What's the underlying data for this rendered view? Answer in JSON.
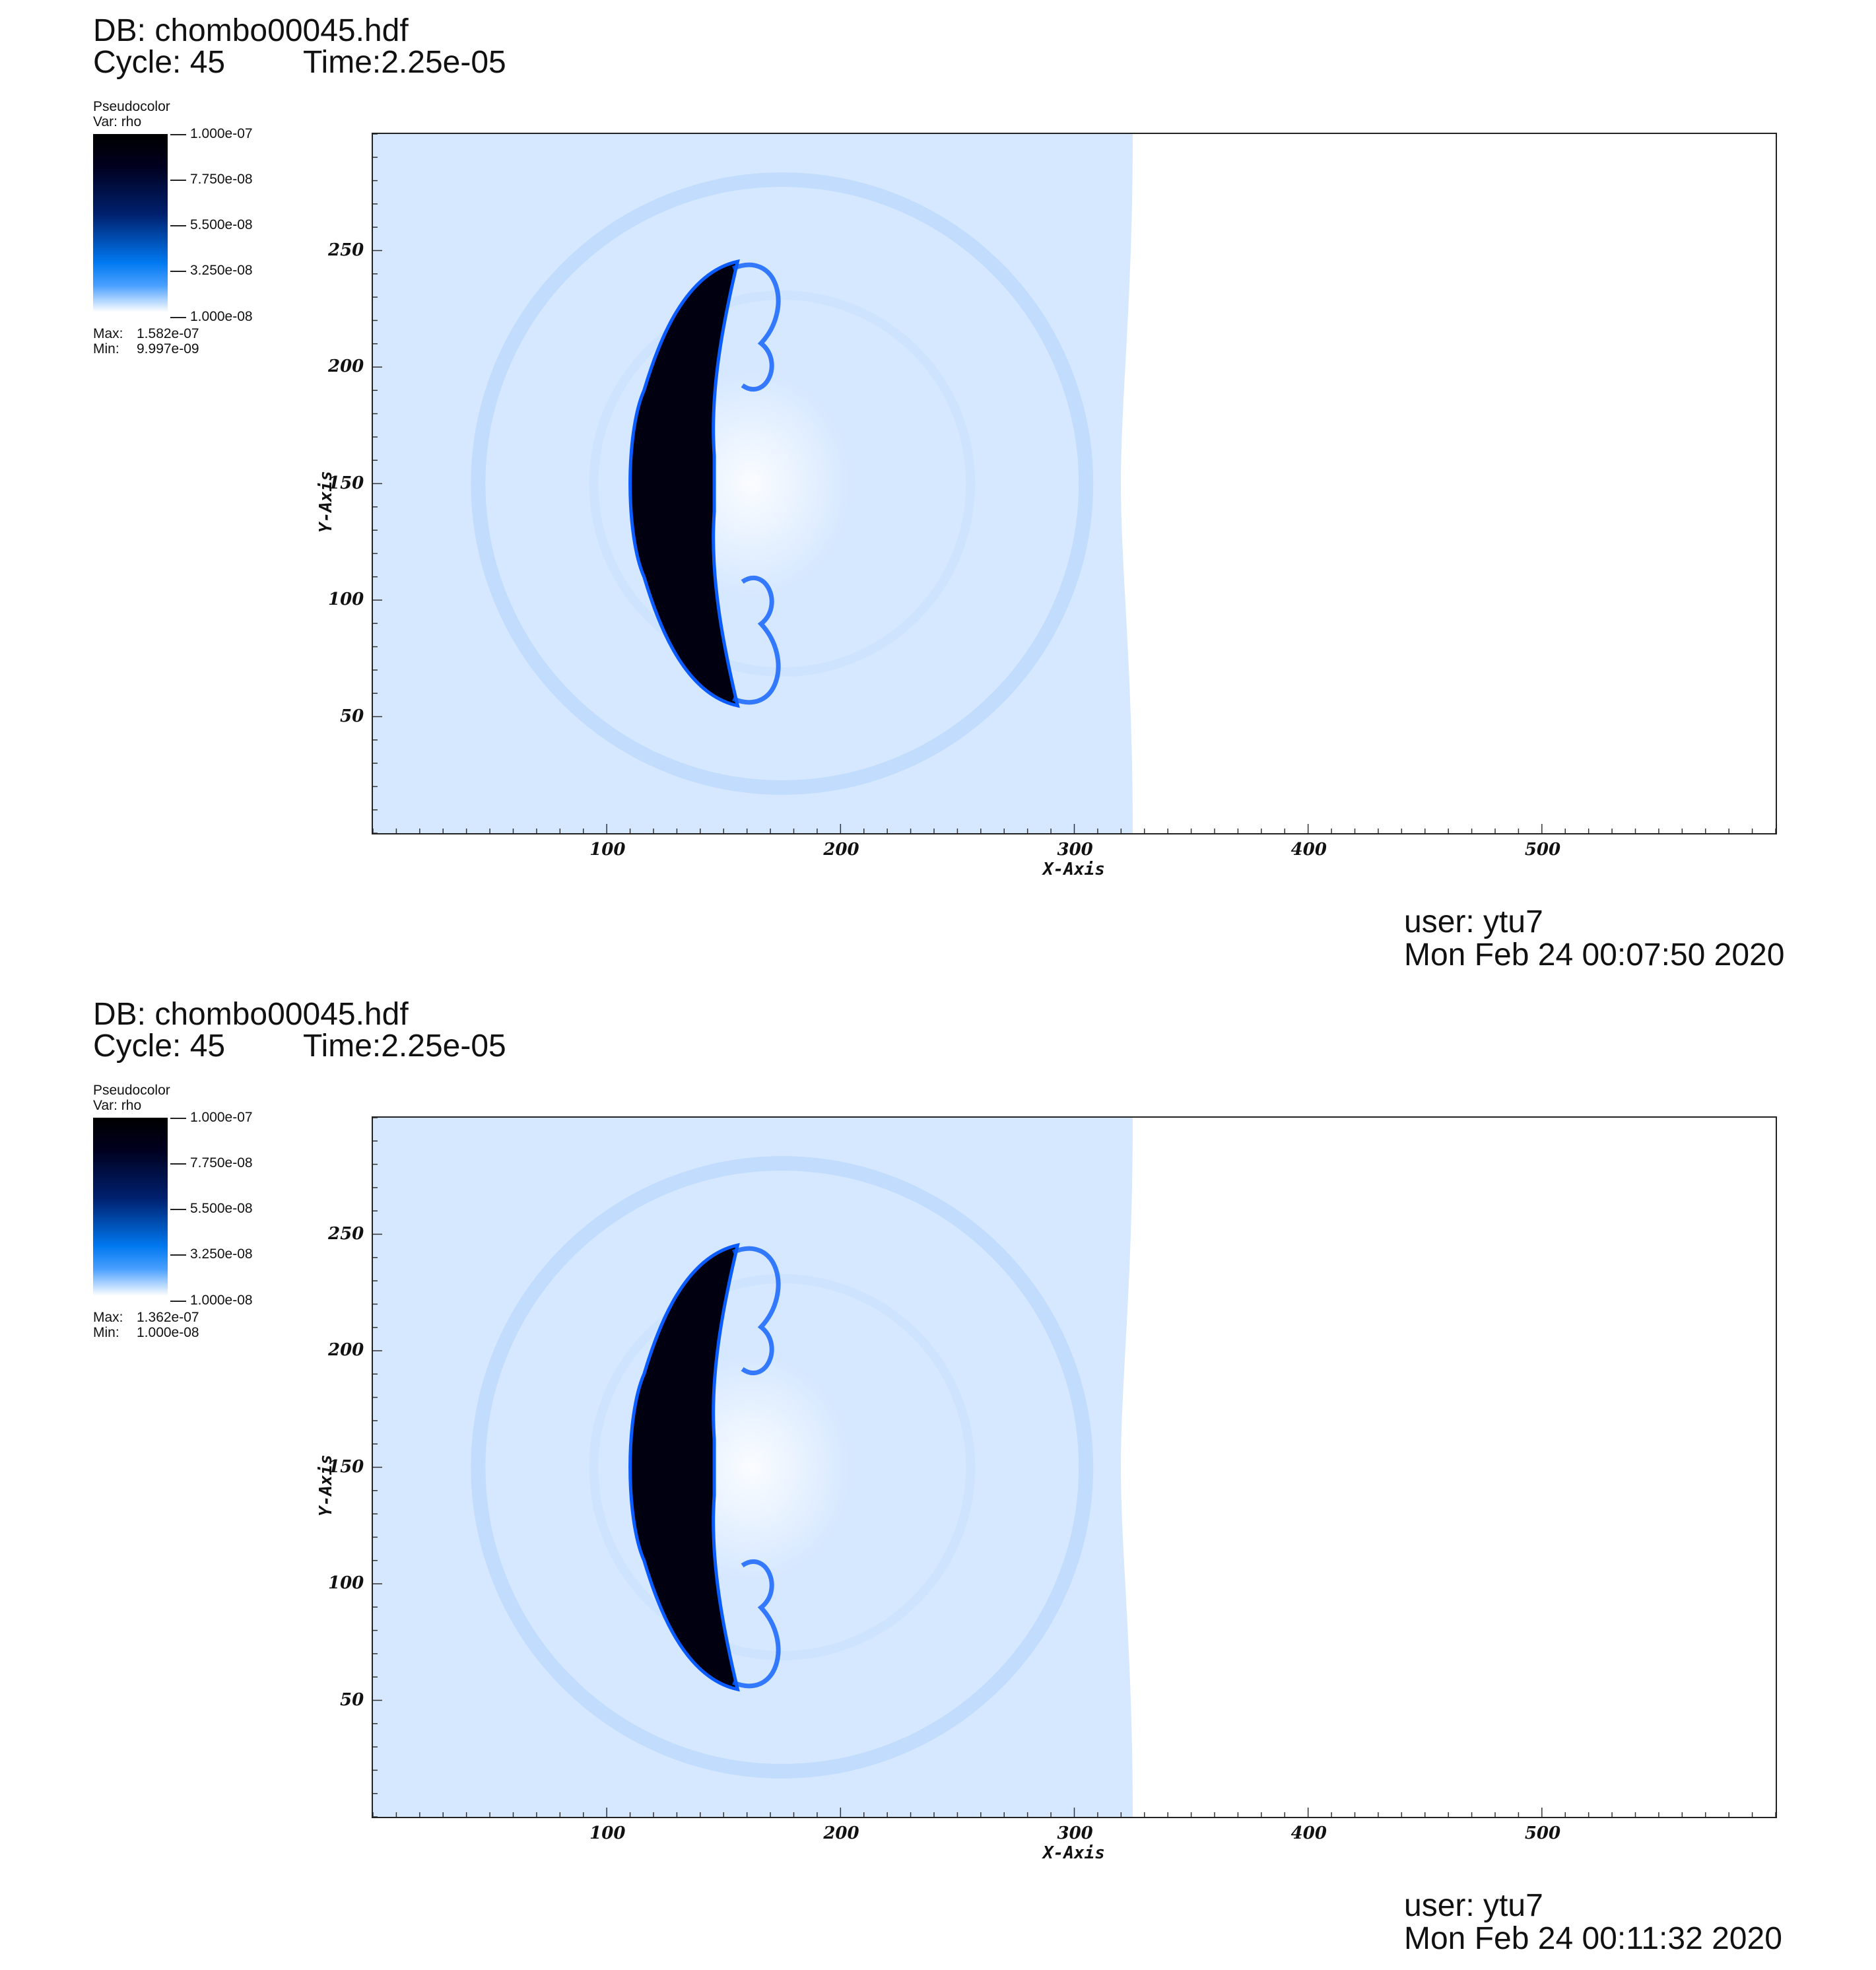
{
  "panels": [
    {
      "db": "DB: chombo00045.hdf",
      "cycle": "Cycle: 45",
      "time": "Time:2.25e-05",
      "legend": {
        "title": "Pseudocolor",
        "var": "Var: rho",
        "ticks": [
          "1.000e-07",
          "7.750e-08",
          "5.500e-08",
          "3.250e-08",
          "1.000e-08"
        ],
        "max_label": "Max:",
        "max": "1.582e-07",
        "min_label": "Min:",
        "min": "9.997e-09"
      },
      "user": "user: ytu7",
      "date": "Mon Feb 24 00:07:50 2020"
    },
    {
      "db": "DB: chombo00045.hdf",
      "cycle": "Cycle: 45",
      "time": "Time:2.25e-05",
      "legend": {
        "title": "Pseudocolor",
        "var": "Var: rho",
        "ticks": [
          "1.000e-07",
          "7.750e-08",
          "5.500e-08",
          "3.250e-08",
          "1.000e-08"
        ],
        "max_label": "Max:",
        "max": "1.362e-07",
        "min_label": "Min:",
        "min": "1.000e-08"
      },
      "user": "user: ytu7",
      "date": "Mon Feb 24 00:11:32 2020"
    }
  ],
  "chart_data": [
    {
      "type": "heatmap",
      "variable": "rho",
      "xlabel": "X-Axis",
      "ylabel": "Y-Axis",
      "xlim": [
        0,
        600
      ],
      "ylim": [
        0,
        300
      ],
      "x_ticks": [
        100,
        200,
        300,
        400,
        500
      ],
      "y_ticks": [
        50,
        100,
        150,
        200,
        250
      ],
      "colorbar_range": [
        1e-08,
        1e-07
      ],
      "max": 1.582e-07,
      "min": 9.997e-09,
      "shock_front_x": 325,
      "dense_bullet_center": [
        128,
        150
      ],
      "blast_ring_center": [
        175,
        150
      ],
      "blast_ring_radius": 130,
      "colors": {
        "background_field": "#d6e8ff",
        "dense": "#000010",
        "edge": "#0a5cff"
      }
    },
    {
      "type": "heatmap",
      "variable": "rho",
      "xlabel": "X-Axis",
      "ylabel": "Y-Axis",
      "xlim": [
        0,
        600
      ],
      "ylim": [
        0,
        300
      ],
      "x_ticks": [
        100,
        200,
        300,
        400,
        500
      ],
      "y_ticks": [
        50,
        100,
        150,
        200,
        250
      ],
      "colorbar_range": [
        1e-08,
        1e-07
      ],
      "max": 1.362e-07,
      "min": 1e-08,
      "shock_front_x": 325,
      "dense_bullet_center": [
        128,
        150
      ],
      "blast_ring_center": [
        175,
        150
      ],
      "blast_ring_radius": 130,
      "colors": {
        "background_field": "#d6e8ff",
        "dense": "#000010",
        "edge": "#0a5cff"
      }
    }
  ]
}
